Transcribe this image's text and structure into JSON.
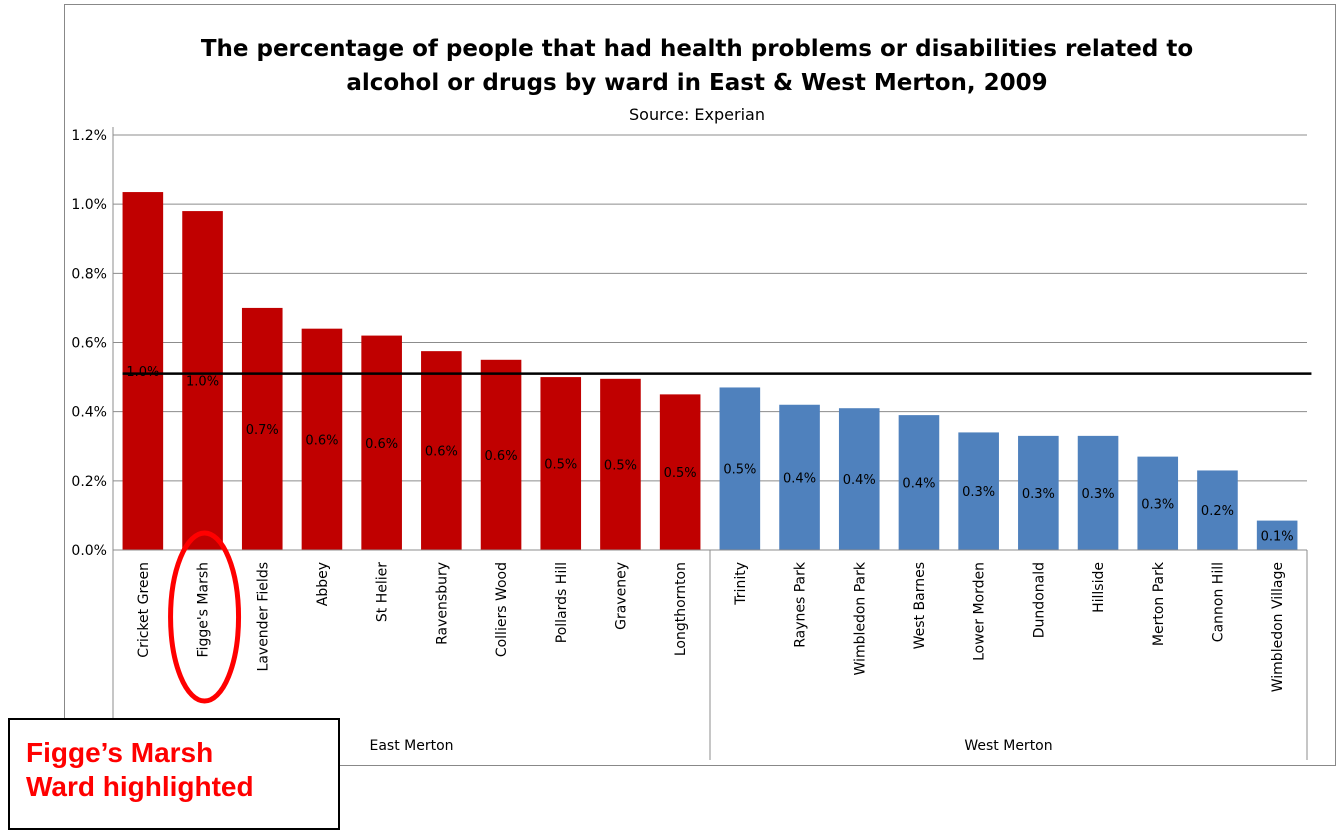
{
  "chart_data": {
    "type": "bar",
    "title_lines": [
      "The percentage of people that had health problems or disabilities related to",
      "alcohol or drugs by ward in East & West Merton, 2009"
    ],
    "subtitle": "Source: Experian",
    "ylim": [
      0,
      0.012
    ],
    "yticks": [
      "0.0%",
      "0.2%",
      "0.4%",
      "0.6%",
      "0.8%",
      "1.0%",
      "1.2%"
    ],
    "grid": true,
    "reference_line": 0.0051,
    "groups": [
      {
        "name": "East Merton",
        "color": "#c00000"
      },
      {
        "name": "West Merton",
        "color": "#4f81bd"
      }
    ],
    "categories": [
      "Cricket Green",
      "Figge's Marsh",
      "Lavender Fields",
      "Abbey",
      "St Helier",
      "Ravensbury",
      "Colliers Wood",
      "Pollards Hill",
      "Graveney",
      "Longthornton",
      "Trinity",
      "Raynes Park",
      "Wimbledon Park",
      "West Barnes",
      "Lower Morden",
      "Dundonald",
      "Hillside",
      "Merton Park",
      "Cannon Hill",
      "Wimbledon Village"
    ],
    "category_group": [
      0,
      0,
      0,
      0,
      0,
      0,
      0,
      0,
      0,
      0,
      1,
      1,
      1,
      1,
      1,
      1,
      1,
      1,
      1,
      1
    ],
    "values": [
      0.01035,
      0.0098,
      0.007,
      0.0064,
      0.0062,
      0.00575,
      0.0055,
      0.005,
      0.00495,
      0.0045,
      0.0047,
      0.0042,
      0.0041,
      0.0039,
      0.0034,
      0.0033,
      0.0033,
      0.0027,
      0.0023,
      0.00085
    ],
    "data_labels": [
      "1.0%",
      "1.0%",
      "0.7%",
      "0.6%",
      "0.6%",
      "0.6%",
      "0.6%",
      "0.5%",
      "0.5%",
      "0.5%",
      "0.5%",
      "0.4%",
      "0.4%",
      "0.4%",
      "0.3%",
      "0.3%",
      "0.3%",
      "0.3%",
      "0.2%",
      "0.1%"
    ],
    "highlight_category": "Figge's Marsh"
  },
  "callout": {
    "line1": "Figge’s Marsh",
    "line2": "Ward highlighted",
    "color": "#ff0000"
  }
}
